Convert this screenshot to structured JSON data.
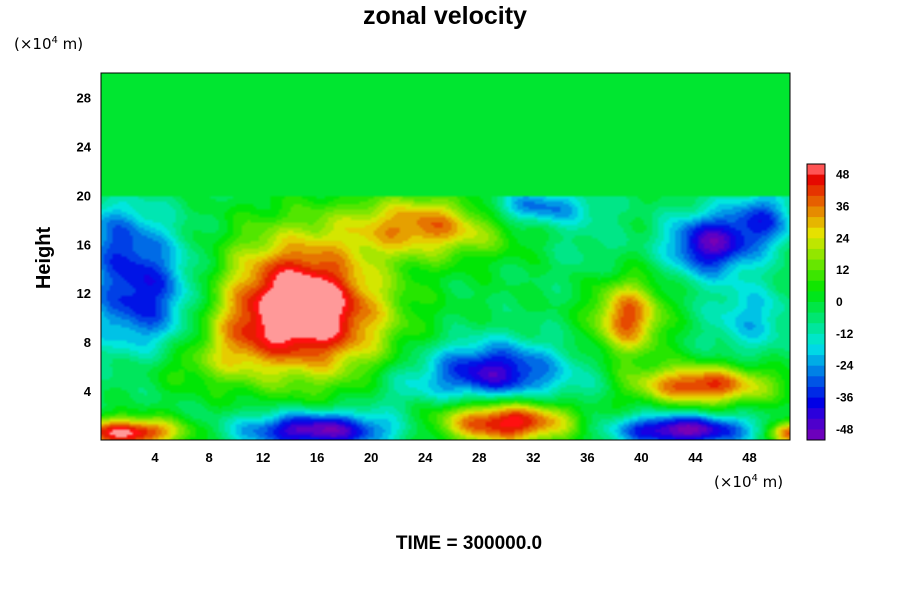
{
  "chart_data": {
    "type": "heatmap",
    "title": "zonal velocity",
    "ylabel": "Height",
    "xlabel": "",
    "x_unit": {
      "prefix": "(×10",
      "exp": "4",
      "suffix": " m)"
    },
    "y_unit": {
      "prefix": "(×10",
      "exp": "4",
      "suffix": " m)"
    },
    "xlim": [
      0,
      51
    ],
    "ylim": [
      0,
      30
    ],
    "x_ticks": [
      4,
      8,
      12,
      16,
      20,
      24,
      28,
      32,
      36,
      40,
      44,
      48
    ],
    "y_ticks": [
      4,
      8,
      12,
      16,
      20,
      24,
      28
    ],
    "color_range": [
      -52,
      52
    ],
    "colorbar_ticks": [
      48,
      36,
      24,
      12,
      0,
      -12,
      -24,
      -36,
      -48
    ],
    "footer": "TIME = 300000.0",
    "background_value": -2,
    "upper_layer_base": 20,
    "blobs": [
      {
        "x": 15.5,
        "y": 10,
        "rx": 6,
        "ry": 5,
        "v": 48
      },
      {
        "x": 14,
        "y": 13,
        "rx": 5,
        "ry": 5,
        "v": 22
      },
      {
        "x": 10,
        "y": 8,
        "rx": 3,
        "ry": 3,
        "v": 12
      },
      {
        "x": 24,
        "y": 17.5,
        "rx": 6,
        "ry": 2.5,
        "v": 36
      },
      {
        "x": 3,
        "y": 12,
        "rx": 4,
        "ry": 5,
        "v": -38
      },
      {
        "x": 1,
        "y": 17,
        "rx": 3,
        "ry": 3,
        "v": -18
      },
      {
        "x": 29,
        "y": 5.5,
        "rx": 5,
        "ry": 2.5,
        "v": -44
      },
      {
        "x": 30,
        "y": 1.5,
        "rx": 5,
        "ry": 1.8,
        "v": 52
      },
      {
        "x": 16,
        "y": 0.8,
        "rx": 5.5,
        "ry": 1.5,
        "v": -52
      },
      {
        "x": 44.5,
        "y": 4.5,
        "rx": 5,
        "ry": 1.6,
        "v": 44
      },
      {
        "x": 39,
        "y": 10,
        "rx": 2.5,
        "ry": 3,
        "v": 40
      },
      {
        "x": 45,
        "y": 16,
        "rx": 3,
        "ry": 2.5,
        "v": -46
      },
      {
        "x": 49,
        "y": 18,
        "rx": 2.5,
        "ry": 2.5,
        "v": -30
      },
      {
        "x": 43,
        "y": 0.8,
        "rx": 5,
        "ry": 1.3,
        "v": -52
      },
      {
        "x": 2,
        "y": 0.6,
        "rx": 4,
        "ry": 1.2,
        "v": 52
      },
      {
        "x": 32,
        "y": 19,
        "rx": 4,
        "ry": 1.5,
        "v": -30
      },
      {
        "x": 36,
        "y": 16,
        "rx": 3,
        "ry": 3,
        "v": -8
      },
      {
        "x": 48,
        "y": 10,
        "rx": 3,
        "ry": 3,
        "v": -20
      },
      {
        "x": 6,
        "y": 6,
        "rx": 4,
        "ry": 2,
        "v": 8
      },
      {
        "x": 22,
        "y": 4,
        "rx": 3,
        "ry": 2,
        "v": -10
      },
      {
        "x": 36,
        "y": 4,
        "rx": 2.5,
        "ry": 2,
        "v": -8
      },
      {
        "x": 51,
        "y": 0.6,
        "rx": 1.5,
        "ry": 1,
        "v": 44
      }
    ]
  }
}
